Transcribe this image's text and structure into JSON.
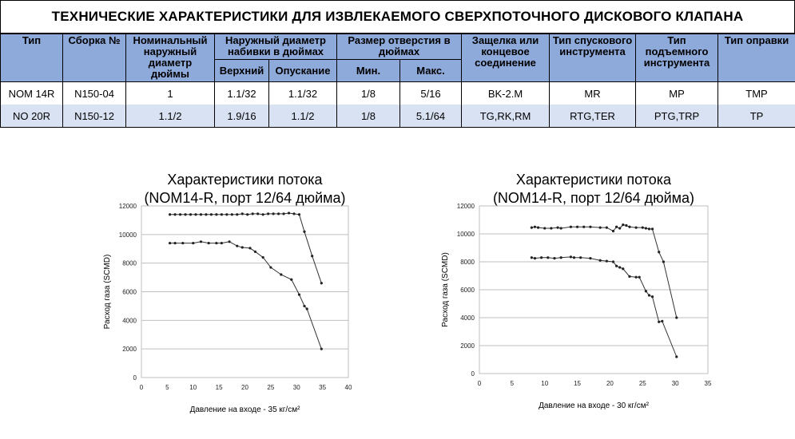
{
  "header": {
    "title": "ТЕХНИЧЕСКИЕ ХАРАКТЕРИСТИКИ ДЛЯ ИЗВЛЕКАЕМОГО СВЕРХПОТОЧНОГО ДИСКОВОГО КЛАПАНА"
  },
  "table": {
    "headers": {
      "type": "Тип",
      "assembly": "Сборка №",
      "nominal_od": "Номинальный наружный диаметр дюймы",
      "packing_od": "Наружный диаметр набивки в дюймах",
      "packing_upper": "Верхний",
      "packing_lower": "Опускание",
      "orifice": "Размер отверстия в дюймах",
      "orifice_min": "Мин.",
      "orifice_max": "Макс.",
      "latch": "Защелка или концевое соединение",
      "running_tool": "Тип спускового инструмента",
      "pulling_tool": "Тип подъемного инструмента",
      "mandrel": "Тип оправки"
    },
    "rows": [
      {
        "type": "NOM 14R",
        "assembly": "N150-04",
        "nominal_od": "1",
        "packing_upper": "1.1/32",
        "packing_lower": "1.1/32",
        "orifice_min": "1/8",
        "orifice_max": "5/16",
        "latch": "BK-2.M",
        "running_tool": "MR",
        "pulling_tool": "MP",
        "mandrel": "TMP"
      },
      {
        "type": "NO 20R",
        "assembly": "N150-12",
        "nominal_od": "1.1/2",
        "packing_upper": "1.9/16",
        "packing_lower": "1.1/2",
        "orifice_min": "1/8",
        "orifice_max": "5.1/64",
        "latch": "TG,RK,RM",
        "running_tool": "RTG,TER",
        "pulling_tool": "PTG,TRP",
        "mandrel": "TP"
      }
    ]
  },
  "chart_data": [
    {
      "type": "line",
      "title": "Характеристики потока",
      "subtitle": "(NOM14-R,  порт 12/64 дюйма)",
      "xlabel": "Давление на входе - 35 кг/см²",
      "ylabel": "Расход газа (SCMD)",
      "xlim": [
        0,
        40
      ],
      "ylim": [
        0,
        12000
      ],
      "xticks": [
        "0",
        "5",
        "10",
        "15",
        "20",
        "25",
        "30",
        "35",
        "40"
      ],
      "yticks": [
        "0",
        "2000",
        "4000",
        "6000",
        "8000",
        "10000",
        "12000"
      ],
      "grid": true,
      "series": [
        {
          "x": [
            5.5,
            6.5,
            7.5,
            8.5,
            9.5,
            10.5,
            11.5,
            12.5,
            13.5,
            14.5,
            15.5,
            16.5,
            17.5,
            18.5,
            19.5,
            20.5,
            21.5,
            22.5,
            23.5,
            24.5,
            25.5,
            26.5,
            27.5,
            28.5,
            29.5,
            30.5,
            31.5,
            33,
            34.8
          ],
          "y": [
            11400,
            11400,
            11400,
            11400,
            11400,
            11400,
            11400,
            11400,
            11400,
            11400,
            11400,
            11400,
            11400,
            11400,
            11450,
            11400,
            11450,
            11450,
            11400,
            11450,
            11450,
            11450,
            11450,
            11500,
            11450,
            11400,
            10200,
            8500,
            6600
          ]
        },
        {
          "x": [
            5.5,
            6.5,
            8,
            10,
            11.5,
            13,
            14.5,
            15.5,
            17,
            18.5,
            19.5,
            21,
            22,
            23.5,
            25,
            27,
            29,
            30.5,
            31.5,
            32,
            34.8
          ],
          "y": [
            9400,
            9400,
            9400,
            9400,
            9500,
            9400,
            9400,
            9400,
            9500,
            9200,
            9100,
            9050,
            8800,
            8400,
            7700,
            7200,
            6850,
            5800,
            5000,
            4800,
            2000
          ]
        }
      ]
    },
    {
      "type": "line",
      "title": "Характеристики потока",
      "subtitle": "(NOM14-R,  порт 12/64 дюйма)",
      "xlabel": "Давление на входе - 30 кг/см²",
      "ylabel": "Расход газа (SCMD)",
      "xlim": [
        0,
        35
      ],
      "ylim": [
        0,
        12000
      ],
      "xticks": [
        "0",
        "5",
        "10",
        "15",
        "20",
        "25",
        "30",
        "35"
      ],
      "yticks": [
        "0",
        "2000",
        "4000",
        "6000",
        "8000",
        "10000",
        "12000"
      ],
      "grid": true,
      "series": [
        {
          "x": [
            8,
            8.5,
            9,
            10,
            11,
            12,
            12.5,
            14,
            15,
            16,
            17,
            18.5,
            19.5,
            20.5,
            21,
            21.5,
            22,
            22.5,
            23,
            24,
            25,
            25.5,
            26,
            26.5,
            27.5,
            28.2,
            30.2
          ],
          "y": [
            10450,
            10500,
            10450,
            10400,
            10400,
            10450,
            10400,
            10500,
            10500,
            10500,
            10500,
            10450,
            10450,
            10200,
            10500,
            10400,
            10650,
            10600,
            10500,
            10450,
            10450,
            10400,
            10350,
            10350,
            8700,
            8000,
            4000
          ]
        },
        {
          "x": [
            8,
            8.5,
            9.5,
            10.5,
            11.5,
            12.5,
            14,
            14.5,
            15.5,
            17,
            18.5,
            19.5,
            20.5,
            21,
            21.5,
            22,
            23,
            24,
            24.5,
            25.5,
            26,
            26.5,
            27.5,
            28,
            30.2
          ],
          "y": [
            8300,
            8250,
            8300,
            8300,
            8250,
            8300,
            8350,
            8300,
            8300,
            8250,
            8100,
            8050,
            8000,
            7700,
            7600,
            7500,
            6950,
            6900,
            6900,
            5900,
            5600,
            5500,
            3700,
            3750,
            1200
          ]
        }
      ]
    }
  ]
}
